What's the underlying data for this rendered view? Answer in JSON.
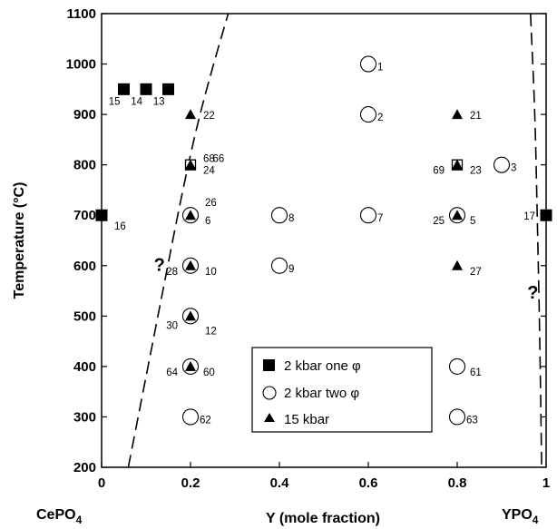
{
  "chart_data": {
    "type": "scatter",
    "xlabel": "Y (mole fraction)",
    "ylabel": "Temperature (°C)",
    "xlim": [
      0,
      1
    ],
    "ylim": [
      200,
      1100
    ],
    "x_ticks": [
      0,
      0.2,
      0.4,
      0.6,
      0.8,
      1
    ],
    "x_tick_labels": [
      "0",
      "0.2",
      "0.4",
      "0.6",
      "0.8",
      "1"
    ],
    "y_ticks": [
      200,
      300,
      400,
      500,
      600,
      700,
      800,
      900,
      1000,
      1100
    ],
    "y_tick_labels": [
      "200",
      "300",
      "400",
      "500",
      "600",
      "700",
      "800",
      "900",
      "1000",
      "1100"
    ],
    "endmembers": [
      {
        "formula": "CePO",
        "subscript": "4",
        "x": 0
      },
      {
        "formula": "YPO",
        "subscript": "4",
        "x": 1
      }
    ],
    "legend": {
      "placement": "bottom-center",
      "entries": [
        {
          "marker": "square",
          "label": "2 kbar one φ"
        },
        {
          "marker": "circle",
          "label": "2 kbar two φ"
        },
        {
          "marker": "triangle",
          "label": "15 kbar"
        }
      ]
    },
    "series": [
      {
        "name": "2 kbar one φ",
        "marker": "square",
        "points": [
          {
            "x": 0.05,
            "y": 950,
            "label": "15"
          },
          {
            "x": 0.1,
            "y": 950,
            "label": "14"
          },
          {
            "x": 0.15,
            "y": 950,
            "label": "13"
          },
          {
            "x": 0.0,
            "y": 700,
            "label": "16"
          },
          {
            "x": 1.0,
            "y": 700,
            "label": "17"
          },
          {
            "x": 0.2,
            "y": 800,
            "label": "68"
          },
          {
            "x": 0.8,
            "y": 800,
            "label": "69"
          }
        ]
      },
      {
        "name": "2 kbar two φ",
        "marker": "circle",
        "points": [
          {
            "x": 0.6,
            "y": 1000,
            "label": "1"
          },
          {
            "x": 0.6,
            "y": 900,
            "label": "2"
          },
          {
            "x": 0.9,
            "y": 800,
            "label": "3"
          },
          {
            "x": 0.2,
            "y": 700,
            "label": "6"
          },
          {
            "x": 0.4,
            "y": 700,
            "label": "8"
          },
          {
            "x": 0.6,
            "y": 700,
            "label": "7"
          },
          {
            "x": 0.8,
            "y": 700,
            "label": "5"
          },
          {
            "x": 0.2,
            "y": 600,
            "label": "10"
          },
          {
            "x": 0.4,
            "y": 600,
            "label": "9"
          },
          {
            "x": 0.2,
            "y": 500,
            "label": "12"
          },
          {
            "x": 0.2,
            "y": 400,
            "label": "60"
          },
          {
            "x": 0.8,
            "y": 400,
            "label": "61"
          },
          {
            "x": 0.2,
            "y": 300,
            "label": "62"
          },
          {
            "x": 0.8,
            "y": 300,
            "label": "63"
          }
        ]
      },
      {
        "name": "15 kbar",
        "marker": "triangle",
        "points": [
          {
            "x": 0.2,
            "y": 900,
            "label": "22"
          },
          {
            "x": 0.8,
            "y": 900,
            "label": "21"
          },
          {
            "x": 0.2,
            "y": 800,
            "label": "24"
          },
          {
            "x": 0.8,
            "y": 800,
            "label": "23"
          },
          {
            "x": 0.2,
            "y": 700,
            "label": "26"
          },
          {
            "x": 0.8,
            "y": 700,
            "label": "25"
          },
          {
            "x": 0.8,
            "y": 600,
            "label": "27"
          },
          {
            "x": 0.2,
            "y": 600,
            "label": "28"
          },
          {
            "x": 0.2,
            "y": 500,
            "label": "30"
          },
          {
            "x": 0.2,
            "y": 400,
            "label": "64"
          }
        ]
      }
    ],
    "extra_labels": [
      {
        "text": "66",
        "x": 0.25,
        "y": 800
      }
    ],
    "question_marks": [
      {
        "text": "?",
        "x": 0.13,
        "y": 590
      },
      {
        "text": "?",
        "x": 0.97,
        "y": 535
      }
    ],
    "boundaries": [
      {
        "name": "left solvus",
        "style": "dashed",
        "points": [
          [
            0.06,
            200
          ],
          [
            0.1,
            380
          ],
          [
            0.14,
            560
          ],
          [
            0.18,
            740
          ],
          [
            0.215,
            880
          ],
          [
            0.255,
            1010
          ],
          [
            0.285,
            1100
          ]
        ]
      },
      {
        "name": "right solvus",
        "style": "dashed",
        "points": [
          [
            0.965,
            1100
          ],
          [
            0.975,
            900
          ],
          [
            0.98,
            700
          ],
          [
            0.985,
            500
          ],
          [
            0.99,
            200
          ]
        ]
      }
    ]
  }
}
